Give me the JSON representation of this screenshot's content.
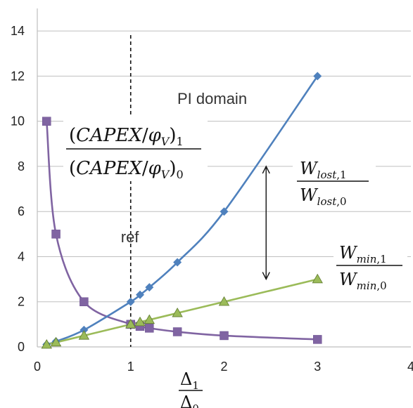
{
  "chart_data": {
    "type": "scatter",
    "xlim": [
      0,
      4
    ],
    "ylim": [
      0,
      15
    ],
    "x_ticks": [
      0,
      1,
      2,
      3,
      4
    ],
    "y_ticks": [
      0,
      2,
      4,
      6,
      8,
      10,
      12,
      14
    ],
    "grid": "horizontal",
    "reference_line": {
      "x": 1,
      "label": "ref"
    },
    "annotations": {
      "region_label": "PI domain"
    },
    "series": [
      {
        "id": "capex",
        "color": "#8064A2",
        "marker": "square",
        "x": [
          0.1,
          0.2,
          0.5,
          1.0,
          1.1,
          1.2,
          1.5,
          2.0,
          3.0
        ],
        "y": [
          10.0,
          5.0,
          2.0,
          1.0,
          0.91,
          0.83,
          0.67,
          0.5,
          0.33
        ]
      },
      {
        "id": "w_lost",
        "color": "#4F81BD",
        "marker": "diamond",
        "x": [
          0.1,
          0.2,
          0.5,
          1.0,
          1.1,
          1.2,
          1.5,
          2.0,
          3.0
        ],
        "y": [
          0.11,
          0.24,
          0.75,
          2.0,
          2.31,
          2.64,
          3.75,
          6.0,
          12.0
        ]
      },
      {
        "id": "w_min",
        "color": "#9BBB59",
        "marker": "triangle",
        "x": [
          0.1,
          0.2,
          0.5,
          1.0,
          1.1,
          1.2,
          1.5,
          2.0,
          3.0
        ],
        "y": [
          0.1,
          0.2,
          0.5,
          1.0,
          1.1,
          1.2,
          1.5,
          2.0,
          3.0
        ]
      }
    ],
    "double_arrow": {
      "x": 2.45,
      "y1": 3.0,
      "y2": 8.0
    }
  }
}
